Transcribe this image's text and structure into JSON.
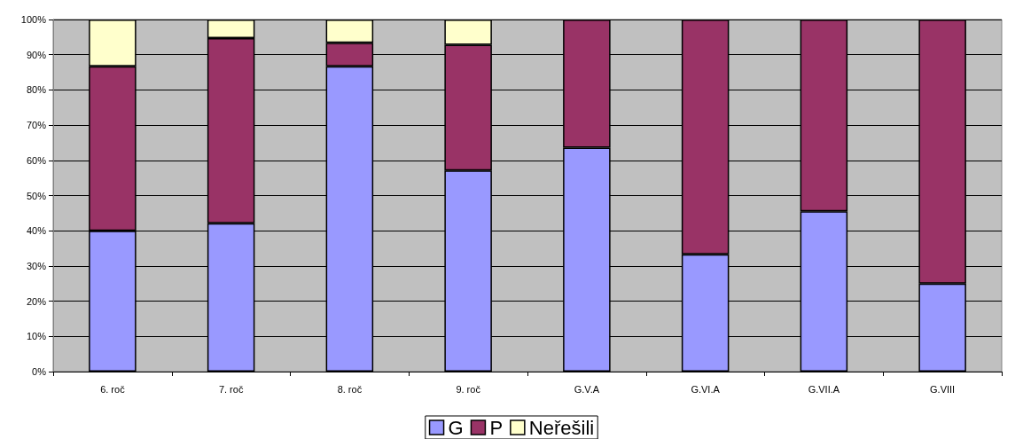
{
  "chart_data": {
    "type": "bar",
    "stacked": true,
    "categories": [
      "6. roč",
      "7. roč",
      "8. roč",
      "9. roč",
      "G.V.A",
      "G.VI.A",
      "G.VII.A",
      "G.VIII"
    ],
    "series": [
      {
        "name": "G",
        "color": "#9999ff",
        "values": [
          40,
          42.1,
          86.7,
          57.1,
          63.6,
          33.3,
          45.5,
          25
        ]
      },
      {
        "name": "P",
        "color": "#993366",
        "values": [
          46.7,
          52.6,
          6.7,
          35.7,
          36.4,
          66.7,
          54.5,
          75
        ]
      },
      {
        "name": "Neřešili",
        "color": "#ffffcc",
        "values": [
          13.3,
          5.3,
          6.6,
          7.2,
          null,
          null,
          null,
          null
        ]
      }
    ],
    "ylim": [
      0,
      100
    ],
    "yticks": [
      {
        "value": 0,
        "label": "0%"
      },
      {
        "value": 10,
        "label": "10%"
      },
      {
        "value": 20,
        "label": "20%"
      },
      {
        "value": 30,
        "label": "30%"
      },
      {
        "value": 40,
        "label": "40%"
      },
      {
        "value": 50,
        "label": "50%"
      },
      {
        "value": 60,
        "label": "60%"
      },
      {
        "value": 70,
        "label": "70%"
      },
      {
        "value": 80,
        "label": "80%"
      },
      {
        "value": 90,
        "label": "90%"
      },
      {
        "value": 100,
        "label": "100%"
      }
    ],
    "grid": "y",
    "legend": "bottom"
  }
}
